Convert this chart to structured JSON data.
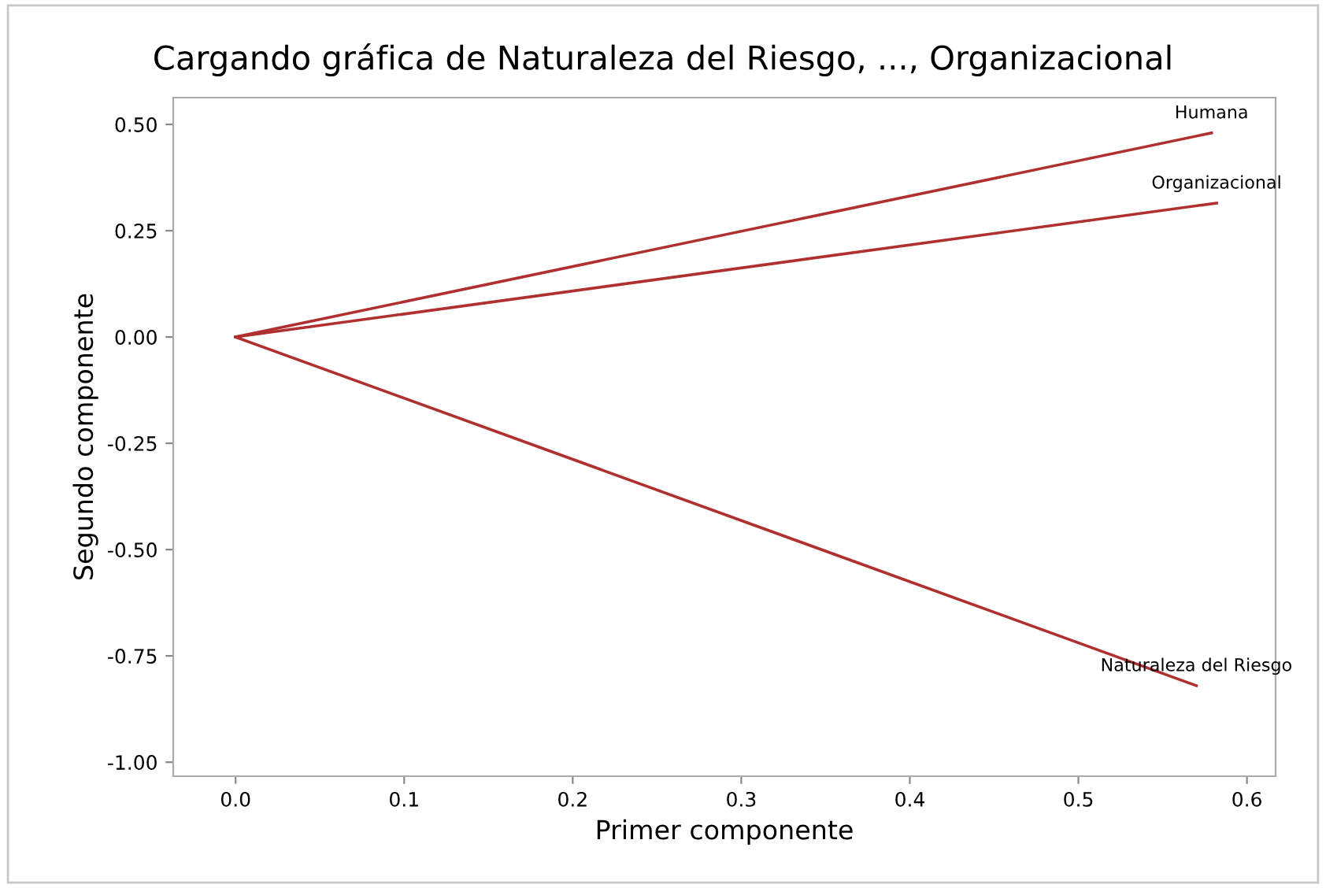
{
  "chart_data": {
    "type": "line",
    "title": "Cargando gráfica de Naturaleza del Riesgo, ..., Organizacional",
    "xlabel": "Primer componente",
    "ylabel": "Segundo componente",
    "series": [
      {
        "name": "Naturaleza del Riesgo",
        "color": "#b03030",
        "x": [
          0,
          0.57
        ],
        "values": [
          0,
          -0.82
        ]
      },
      {
        "name": "Humana",
        "color": "#b03030",
        "x": [
          0,
          0.579
        ],
        "values": [
          0,
          0.48
        ]
      },
      {
        "name": "Organizacional",
        "color": "#b03030",
        "x": [
          0,
          0.582
        ],
        "values": [
          0,
          0.315
        ]
      }
    ],
    "xlim": [
      -0.037,
      0.617
    ],
    "ylim": [
      -1.033,
      0.563
    ],
    "xticks": [
      {
        "value": 0,
        "label": "0.0"
      },
      0.1,
      0.2,
      0.3,
      0.4,
      0.5,
      0.6
    ],
    "yticks": [
      {
        "value": -1,
        "label": "-1.00"
      },
      {
        "value": -0.75,
        "label": "-0.75"
      },
      {
        "value": -0.5,
        "label": "-0.50"
      },
      {
        "value": -0.25,
        "label": "-0.25"
      },
      {
        "value": 0,
        "label": "0.00"
      },
      {
        "value": 0.25,
        "label": "0.25"
      },
      {
        "value": 0.5,
        "label": "0.50"
      }
    ],
    "grid": false,
    "legend": false,
    "marker": "none",
    "line_style": "solid"
  }
}
